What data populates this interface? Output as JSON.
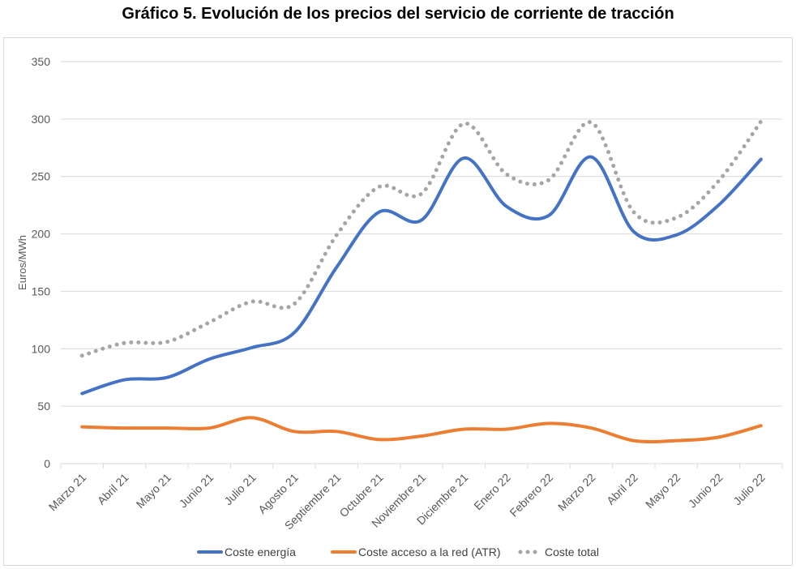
{
  "chart_data": {
    "type": "line",
    "title": "Gráfico 5. Evolución de los precios del servicio de corriente de tracción",
    "xlabel": "",
    "ylabel": "Euros/MWh",
    "ylim": [
      0,
      350
    ],
    "yticks": [
      0,
      50,
      100,
      150,
      200,
      250,
      300,
      350
    ],
    "grid": true,
    "legend_position": "bottom",
    "categories": [
      "Marzo 21",
      "Abril 21",
      "Mayo 21",
      "Junio 21",
      "Julio 21",
      "Agosto 21",
      "Septiembre 21",
      "Octubre 21",
      "Noviembre 21",
      "Diciembre 21",
      "Enero 22",
      "Febrero 22",
      "Marzo 22",
      "Abril 22",
      "Mayo 22",
      "Junio 22",
      "Julio 22"
    ],
    "series": [
      {
        "name": "Coste energía",
        "color": "#4472c4",
        "style": "solid",
        "values": [
          61,
          73,
          75,
          91,
          101,
          114,
          171,
          219,
          212,
          266,
          224,
          216,
          267,
          202,
          199,
          225,
          265
        ]
      },
      {
        "name": "Coste acceso a la red (ATR)",
        "color": "#ed7d31",
        "style": "solid",
        "values": [
          32,
          31,
          31,
          31,
          40,
          28,
          28,
          21,
          24,
          30,
          30,
          35,
          31,
          20,
          20,
          23,
          33
        ]
      },
      {
        "name": "Coste total",
        "color": "#a5a5a5",
        "style": "dotted",
        "values": [
          94,
          105,
          106,
          123,
          141,
          139,
          199,
          241,
          235,
          296,
          252,
          247,
          297,
          219,
          214,
          246,
          298
        ]
      }
    ]
  }
}
